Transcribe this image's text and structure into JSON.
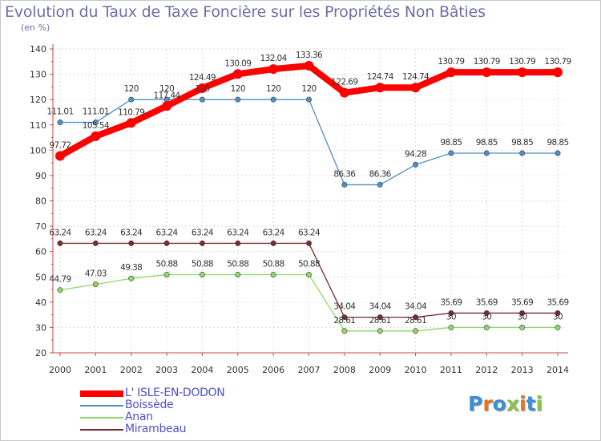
{
  "header": {
    "title": "Evolution du Taux de Taxe Foncière sur les Propriétés Non Bâties",
    "subtitle": "(en %)"
  },
  "logo": {
    "text": "Proxiti",
    "colors": [
      "#3a8fd6",
      "#e8731a",
      "#3a8fd6",
      "#8bc34a",
      "#e8731a",
      "#3a8fd6",
      "#8bc34a"
    ]
  },
  "chart_data": {
    "type": "line",
    "title": "Evolution du Taux de Taxe Foncière sur les Propriétés Non Bâties",
    "ylabel": "(en %)",
    "xlabel": "",
    "ylim": [
      20,
      140
    ],
    "yticks": [
      20,
      30,
      40,
      50,
      60,
      70,
      80,
      90,
      100,
      110,
      120,
      130,
      140
    ],
    "grid": true,
    "legend_position": "bottom-left",
    "x": [
      2000,
      2001,
      2002,
      2003,
      2004,
      2005,
      2006,
      2007,
      2008,
      2009,
      2010,
      2011,
      2012,
      2013,
      2014
    ],
    "series": [
      {
        "name": "L' ISLE-EN-DODON",
        "color": "#ff0000",
        "values": [
          97.72,
          105.54,
          110.79,
          117.44,
          124.49,
          130.09,
          132.04,
          133.36,
          122.69,
          124.74,
          124.74,
          130.79,
          130.79,
          130.79,
          130.79
        ],
        "labels": [
          "97.72",
          "105.54",
          "110.79",
          "117.44",
          "124.49",
          "130.09",
          "132.04",
          "133.36",
          "122.69",
          "124.74",
          "124.74",
          "130.79",
          "130.79",
          "130.79",
          "130.79"
        ]
      },
      {
        "name": "Boissède",
        "color": "#4d8fc8",
        "values": [
          111.01,
          111.01,
          120,
          120,
          120,
          120,
          120,
          120,
          86.36,
          86.36,
          94.28,
          98.85,
          98.85,
          98.85,
          98.85
        ],
        "labels": [
          "111.01",
          "111.01",
          "120",
          "120",
          "120",
          "120",
          "120",
          "120",
          "86.36",
          "86.36",
          "94.28",
          "98.85",
          "98.85",
          "98.85",
          "98.85"
        ]
      },
      {
        "name": "Anan",
        "color": "#8fd66a",
        "values": [
          44.79,
          47.03,
          49.38,
          50.88,
          50.88,
          50.88,
          50.88,
          50.88,
          28.61,
          28.61,
          28.61,
          30,
          30,
          30,
          30
        ],
        "labels": [
          "44.79",
          "47.03",
          "49.38",
          "50.88",
          "50.88",
          "50.88",
          "50.88",
          "50.88",
          "28.61",
          "28.61",
          "28.61",
          "30",
          "30",
          "30",
          "30"
        ]
      },
      {
        "name": "Mirambeau",
        "color": "#7a2a32",
        "values": [
          63.24,
          63.24,
          63.24,
          63.24,
          63.24,
          63.24,
          63.24,
          63.24,
          34.04,
          34.04,
          34.04,
          35.69,
          35.69,
          35.69,
          35.69
        ],
        "labels": [
          "63.24",
          "63.24",
          "63.24",
          "63.24",
          "63.24",
          "63.24",
          "63.24",
          "63.24",
          "34.04",
          "34.04",
          "34.04",
          "35.69",
          "35.69",
          "35.69",
          "35.69"
        ]
      }
    ]
  }
}
